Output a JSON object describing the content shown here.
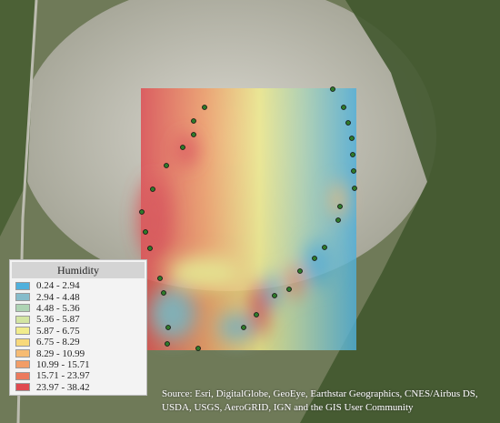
{
  "legend": {
    "title": "Humidity",
    "items": [
      {
        "label": "0.24 - 2.94",
        "color": "#4fb0dc"
      },
      {
        "label": "2.94 - 4.48",
        "color": "#86bccb"
      },
      {
        "label": "4.48 - 5.36",
        "color": "#aed4b4"
      },
      {
        "label": "5.36 - 5.87",
        "color": "#d3e5a2"
      },
      {
        "label": "5.87 - 6.75",
        "color": "#f1ec8c"
      },
      {
        "label": "6.75 - 8.29",
        "color": "#f8d97a"
      },
      {
        "label": "8.29 - 10.99",
        "color": "#f6bb72"
      },
      {
        "label": "10.99 - 15.71",
        "color": "#f29d67"
      },
      {
        "label": "15.71 - 23.97",
        "color": "#ec7a5d"
      },
      {
        "label": "23.97 - 38.42",
        "color": "#e04a50"
      }
    ]
  },
  "source": "Source: Esri, DigitalGlobe, GeoEye, Earthstar Geographics, CNES/Airbus DS, USDA, USGS, AeroGRID, IGN and the GIS User Community"
}
